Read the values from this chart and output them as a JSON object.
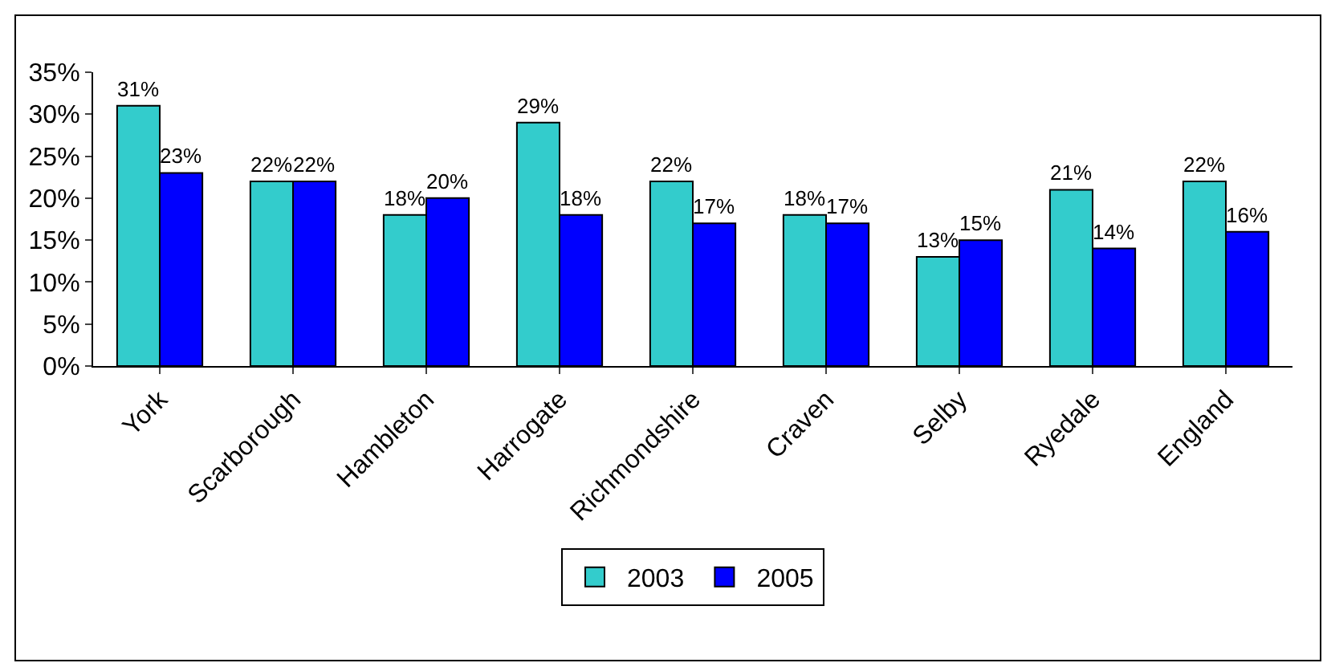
{
  "chart_data": {
    "type": "bar",
    "categories": [
      "York",
      "Scarborough",
      "Hambleton",
      "Harrogate",
      "Richmondshire",
      "Craven",
      "Selby",
      "Ryedale",
      "England"
    ],
    "series": [
      {
        "name": "2003",
        "color": "#33cccc",
        "values": [
          31,
          22,
          18,
          29,
          22,
          18,
          13,
          21,
          22
        ],
        "value_labels": [
          "31%",
          "22%",
          "18%",
          "29%",
          "22%",
          "18%",
          "13%",
          "21%",
          "22%"
        ]
      },
      {
        "name": "2005",
        "color": "#0000ff",
        "values": [
          23,
          22,
          20,
          18,
          17,
          17,
          15,
          14,
          16
        ],
        "value_labels": [
          "23%",
          "22%",
          "20%",
          "18%",
          "17%",
          "17%",
          "15%",
          "14%",
          "16%"
        ]
      }
    ],
    "ylim": [
      0,
      35
    ],
    "yticks": [
      {
        "value": 0,
        "label": "0%"
      },
      {
        "value": 5,
        "label": "5%"
      },
      {
        "value": 10,
        "label": "10%"
      },
      {
        "value": 15,
        "label": "15%"
      },
      {
        "value": 20,
        "label": "20%"
      },
      {
        "value": 25,
        "label": "25%"
      },
      {
        "value": 30,
        "label": "30%"
      },
      {
        "value": 35,
        "label": "35%"
      }
    ],
    "grid": false,
    "legend": "bottom"
  }
}
